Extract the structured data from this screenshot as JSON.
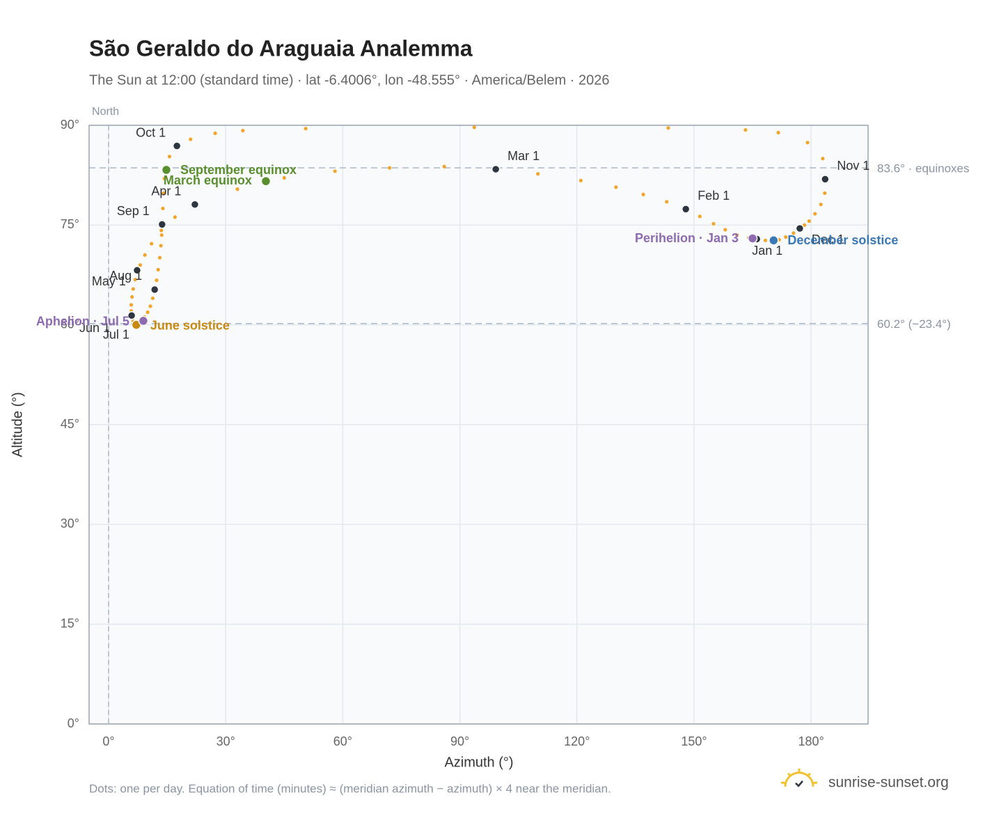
{
  "chart_data": {
    "type": "scatter",
    "title": "São Geraldo do Araguaia Analemma",
    "subtitle": "The Sun at 12:00 (standard time) · lat -6.4006°, lon -48.555° · America/Belem · 2026",
    "x_label": "Azimuth (°)",
    "y_label": "Altitude (°)",
    "xlim": [
      -5,
      194.6
    ],
    "ylim": [
      0,
      90
    ],
    "xticks": [
      {
        "value": 0,
        "label": "0°"
      },
      {
        "value": 30,
        "label": "30°"
      },
      {
        "value": 60,
        "label": "60°"
      },
      {
        "value": 90,
        "label": "90°"
      },
      {
        "value": 120,
        "label": "120°"
      },
      {
        "value": 150,
        "label": "150°"
      },
      {
        "value": 180,
        "label": "180°"
      }
    ],
    "yticks": [
      {
        "value": 0,
        "label": "0°"
      },
      {
        "value": 15,
        "label": "15°"
      },
      {
        "value": 30,
        "label": "30°"
      },
      {
        "value": 45,
        "label": "45°"
      },
      {
        "value": 60,
        "label": "60°"
      },
      {
        "value": 75,
        "label": "75°"
      },
      {
        "value": 90,
        "label": "90°"
      }
    ],
    "grid": true,
    "north_line": {
      "value": 0,
      "label": "North"
    },
    "reference_lines": [
      {
        "value": 83.6,
        "label": "83.6° · equinoxes"
      },
      {
        "value": 60.2,
        "label": "60.2° (−23.4°)"
      }
    ],
    "dots": {
      "color": "#f2a52a",
      "x": [
        166.1,
        164,
        161,
        158,
        155,
        151.5,
        147.9,
        143,
        137,
        130,
        121,
        110,
        99.2,
        86,
        72,
        58,
        45,
        33,
        22.1,
        17,
        13.5,
        11,
        9.3,
        8.1,
        7.3,
        6.8,
        6.3,
        6,
        5.8,
        5.8,
        5.9,
        6.1,
        6.3,
        6.6,
        7.0,
        7.2,
        7.3,
        8.6,
        9.2,
        10,
        10.7,
        11.3,
        11.8,
        12.3,
        12.7,
        13.1,
        13.4,
        13.6,
        13.7,
        13.9,
        14.1,
        14.3,
        14.7,
        15.6,
        17.5,
        21,
        27.3,
        34.4,
        50.5,
        93.7,
        143.4,
        163.2,
        171.6,
        179.1,
        183,
        183.6,
        183.5,
        182.5,
        181,
        179.5,
        178.3,
        177.1,
        175.5,
        173.5,
        171.8,
        170.4,
        168.3
      ],
      "y": [
        72.9,
        73.1,
        73.5,
        74.3,
        75.2,
        76.3,
        77.4,
        78.5,
        79.6,
        80.7,
        81.7,
        82.7,
        83.4,
        83.8,
        83.6,
        83.1,
        82.1,
        80.4,
        78.1,
        76.2,
        74.2,
        72.2,
        70.5,
        69,
        68.2,
        66.8,
        65.4,
        64.2,
        63,
        62.1,
        61.4,
        60.9,
        60.5,
        60.2,
        60.0,
        60.0,
        60.1,
        60.6,
        61.2,
        61.9,
        62.8,
        64,
        65.3,
        66.7,
        68.3,
        70.1,
        71.9,
        73.5,
        75.1,
        77.5,
        79.8,
        82,
        83.3,
        85.3,
        86.9,
        87.9,
        88.8,
        89.2,
        89.5,
        89.7,
        89.6,
        89.3,
        88.9,
        87.4,
        85,
        81.9,
        79.8,
        78.1,
        76.7,
        75.6,
        75,
        74.5,
        73.8,
        73.2,
        72.8,
        72.7,
        72.7
      ]
    },
    "months": {
      "color": "#2d3540",
      "labels": [
        "Jan 1",
        "Feb 1",
        "Mar 1",
        "Apr 1",
        "May 1",
        "Jun 1",
        "Jul 1",
        "Aug 1",
        "Sep 1",
        "Oct 1",
        "Nov 1",
        "Dec 1"
      ],
      "x": [
        166.1,
        147.9,
        99.2,
        22.1,
        7.3,
        5.9,
        7.3,
        11.8,
        13.7,
        17.5,
        183.6,
        177.1
      ],
      "y": [
        72.9,
        77.4,
        83.4,
        78.1,
        68.2,
        61.4,
        60.1,
        65.3,
        75.1,
        86.9,
        81.9,
        74.5
      ]
    },
    "events": [
      {
        "name": "March equinox",
        "color": "#5a8f2e",
        "x": 40.3,
        "y": 81.6
      },
      {
        "name": "June solstice",
        "color": "#c98a12",
        "x": 7.1,
        "y": 60.0
      },
      {
        "name": "September equinox",
        "color": "#5a8f2e",
        "x": 14.8,
        "y": 83.3
      },
      {
        "name": "December solstice",
        "color": "#3a78b5",
        "x": 170.4,
        "y": 72.7
      },
      {
        "name": "Perihelion · Jan 3",
        "color": "#8e6bb0",
        "x": 165.0,
        "y": 73.0
      },
      {
        "name": "Aphelion · Jul 5",
        "color": "#8e6bb0",
        "x": 8.9,
        "y": 60.6
      }
    ],
    "note": "Dots: one per day. Equation of time (minutes) ≈ (meridian azimuth − azimuth) × 4 near the meridian.",
    "brand": "sunrise-sunset.org"
  }
}
